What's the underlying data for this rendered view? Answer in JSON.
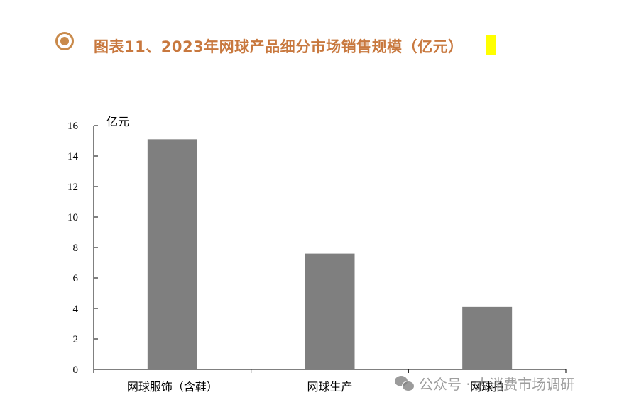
{
  "header": {
    "title": "图表11、2023年网球产品细分市场销售规模（亿元）",
    "accent_color": "#c8783e",
    "marker_color": "#ffff00"
  },
  "chart_data": {
    "type": "bar",
    "title": "图表11、2023年网球产品细分市场销售规模（亿元）",
    "unit_label": "亿元",
    "categories": [
      "网球服饰（含鞋）",
      "网球生产",
      "网球拍"
    ],
    "values": [
      15.1,
      7.6,
      4.1
    ],
    "ylim": [
      0,
      16
    ],
    "yticks": [
      0,
      2,
      4,
      6,
      8,
      10,
      12,
      14,
      16
    ],
    "grid": false,
    "bar_color": "#7f7f7f"
  },
  "watermark": {
    "icon": "wechat-icon",
    "text": "公众号 · 大消费市场调研"
  }
}
